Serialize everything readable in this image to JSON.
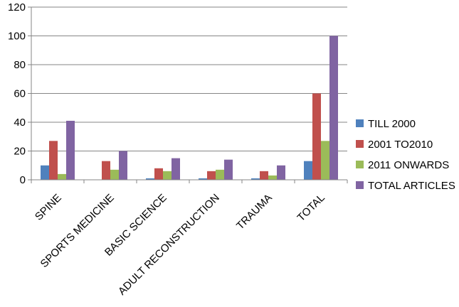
{
  "chart_data": {
    "type": "bar",
    "categories": [
      "SPINE",
      "SPORTS MEDICINE",
      "BASIC SCIENCE",
      "ADULT RECONSTRUCTION",
      "TRAUMA",
      "TOTAL"
    ],
    "series": [
      {
        "name": "TILL 2000",
        "color": "#4F81BD",
        "values": [
          10,
          0,
          1,
          1,
          1,
          13
        ]
      },
      {
        "name": "2001 TO2010",
        "color": "#C0504D",
        "values": [
          27,
          13,
          8,
          6,
          6,
          60
        ]
      },
      {
        "name": "2011 ONWARDS",
        "color": "#9BBB59",
        "values": [
          4,
          7,
          6,
          7,
          3,
          27
        ]
      },
      {
        "name": "TOTAL ARTICLES",
        "color": "#8064A2",
        "values": [
          41,
          20,
          15,
          14,
          10,
          100
        ]
      }
    ],
    "ylim": [
      0,
      120
    ],
    "yticks": [
      0,
      20,
      40,
      60,
      80,
      100,
      120
    ],
    "title": "",
    "xlabel": "",
    "ylabel": "",
    "grid": true,
    "legend_position": "right"
  }
}
